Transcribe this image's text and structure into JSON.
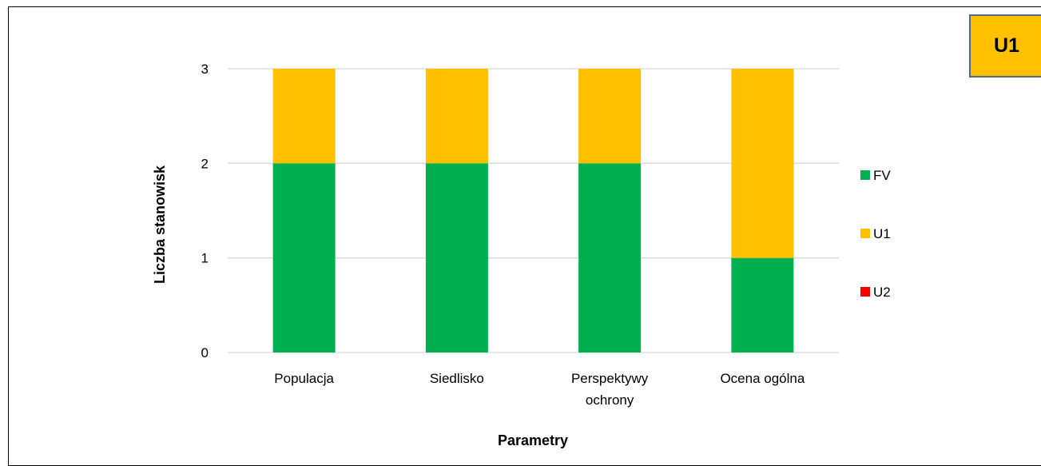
{
  "badge": {
    "label": "U1",
    "color": "#FFC000"
  },
  "chart_data": {
    "type": "bar",
    "stacked": true,
    "categories": [
      [
        "Populacja"
      ],
      [
        "Siedlisko"
      ],
      [
        "Perspektywy",
        "ochrony"
      ],
      [
        "Ocena ogólna"
      ]
    ],
    "series": [
      {
        "name": "FV",
        "color": "#00B050",
        "values": [
          2,
          2,
          2,
          1
        ]
      },
      {
        "name": "U1",
        "color": "#FFC000",
        "values": [
          1,
          1,
          1,
          2
        ]
      },
      {
        "name": "U2",
        "color": "#FF0000",
        "values": [
          0,
          0,
          0,
          0
        ]
      }
    ],
    "xlabel": "Parametry",
    "ylabel": "Liczba stanowisk",
    "ylim": [
      0,
      3
    ],
    "yticks": [
      "0",
      "1",
      "2",
      "3"
    ],
    "grid": true,
    "legend_position": "right"
  }
}
